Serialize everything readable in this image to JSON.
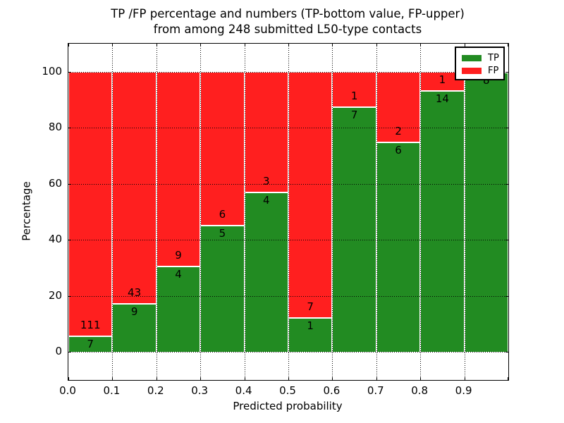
{
  "title": {
    "line1": "TP /FP percentage and numbers (TP-bottom value, FP-upper)",
    "line2": "from among 248 submitted L50-type contacts"
  },
  "axes": {
    "xlabel": "Predicted probability",
    "ylabel": "Percentage"
  },
  "legend": {
    "items": [
      {
        "label": "TP",
        "color": "#228B22"
      },
      {
        "label": "FP",
        "color": "#FF1F1F"
      }
    ]
  },
  "chart_data": {
    "type": "bar",
    "stacked": true,
    "normalized_to_percent": 100,
    "title": "TP /FP percentage and numbers (TP-bottom value, FP-upper) from among 248 submitted L50-type contacts",
    "total_contacts": 248,
    "xlabel": "Predicted probability",
    "ylabel": "Percentage",
    "bin_edges": [
      0.0,
      0.1,
      0.2,
      0.3,
      0.4,
      0.5,
      0.6,
      0.7,
      0.8,
      0.9,
      1.0
    ],
    "categories": [
      "0.0-0.1",
      "0.1-0.2",
      "0.2-0.3",
      "0.3-0.4",
      "0.4-0.5",
      "0.5-0.6",
      "0.6-0.7",
      "0.7-0.8",
      "0.8-0.9",
      "0.9-1.0"
    ],
    "series": [
      {
        "name": "TP",
        "color": "#228B22",
        "counts": [
          7,
          9,
          4,
          5,
          4,
          1,
          7,
          6,
          14,
          8
        ]
      },
      {
        "name": "FP",
        "color": "#FF1F1F",
        "counts": [
          111,
          43,
          9,
          6,
          3,
          7,
          1,
          2,
          1,
          0
        ]
      }
    ],
    "tp_percent": [
      5.9,
      17.3,
      30.8,
      45.5,
      57.1,
      12.5,
      87.5,
      75.0,
      93.3,
      100.0
    ],
    "xticks": [
      "0.0",
      "0.1",
      "0.2",
      "0.3",
      "0.4",
      "0.5",
      "0.6",
      "0.7",
      "0.8",
      "0.9"
    ],
    "yticks": [
      0,
      20,
      40,
      60,
      80,
      100
    ],
    "xlim": [
      0.0,
      1.0
    ],
    "ylim": [
      -10,
      110
    ],
    "grid": "dotted",
    "legend_position": "upper right",
    "legend_labels": [
      "TP",
      "FP"
    ]
  }
}
